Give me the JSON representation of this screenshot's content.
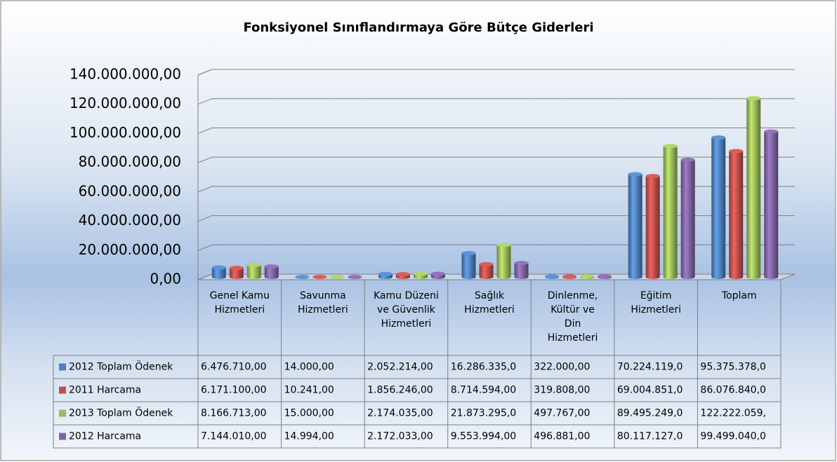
{
  "chart_data": {
    "type": "bar3d",
    "title": "Fonksiyonel Sınıflandırmaya Göre Bütçe Giderleri",
    "categories": [
      "Genel Kamu Hizmetleri",
      "Savunma Hizmetleri",
      "Kamu Düzeni ve Güvenlik Hizmetleri",
      "Sağlık Hizmetleri",
      "Dinlenme, Kültür ve Din Hizmetleri",
      "Eğitim Hizmetleri",
      "Toplam"
    ],
    "series": [
      {
        "name": "2012 Toplam Ödenek",
        "color": "#4f81bd",
        "values": [
          6476710,
          14000,
          2052214,
          16286335,
          322000,
          70224119,
          95375378
        ],
        "value_labels": [
          "6.476.710,00",
          "14.000,00",
          "2.052.214,00",
          "16.286.335,0",
          "322.000,00",
          "70.224.119,0",
          "95.375.378,0"
        ]
      },
      {
        "name": "2011 Harcama",
        "color": "#c0504d",
        "values": [
          6171100,
          10241,
          1856246,
          8714594,
          319808,
          69004851,
          86076840
        ],
        "value_labels": [
          "6.171.100,00",
          "10.241,00",
          "1.856.246,00",
          "8.714.594,00",
          "319.808,00",
          "69.004.851,0",
          "86.076.840,0"
        ]
      },
      {
        "name": "2013 Toplam Ödenek",
        "color": "#9bbb59",
        "values": [
          8166713,
          15000,
          2174035,
          21873295,
          497767,
          89495249,
          122222059
        ],
        "value_labels": [
          "8.166.713,00",
          "15.000,00",
          "2.174.035,00",
          "21.873.295,0",
          "497.767,00",
          "89.495.249,0",
          "122.222.059,"
        ]
      },
      {
        "name": "2012 Harcama",
        "color": "#8064a2",
        "values": [
          7144010,
          14994,
          2172033,
          9553994,
          496881,
          80117127,
          99499040
        ],
        "value_labels": [
          "7.144.010,00",
          "14.994,00",
          "2.172.033,00",
          "9.553.994,00",
          "496.881,00",
          "80.117.127,0",
          "99.499.040,0"
        ]
      }
    ],
    "ylim": [
      0,
      140000000
    ],
    "yticks": [
      {
        "value": 0,
        "label": "0,00"
      },
      {
        "value": 20000000,
        "label": "20.000.000,00"
      },
      {
        "value": 40000000,
        "label": "40.000.000,00"
      },
      {
        "value": 60000000,
        "label": "60.000.000,00"
      },
      {
        "value": 80000000,
        "label": "80.000.000,00"
      },
      {
        "value": 100000000,
        "label": "100.000.000,00"
      },
      {
        "value": 120000000,
        "label": "120.000.000,00"
      },
      {
        "value": 140000000,
        "label": "140.000.000,00"
      }
    ],
    "grid": true
  }
}
